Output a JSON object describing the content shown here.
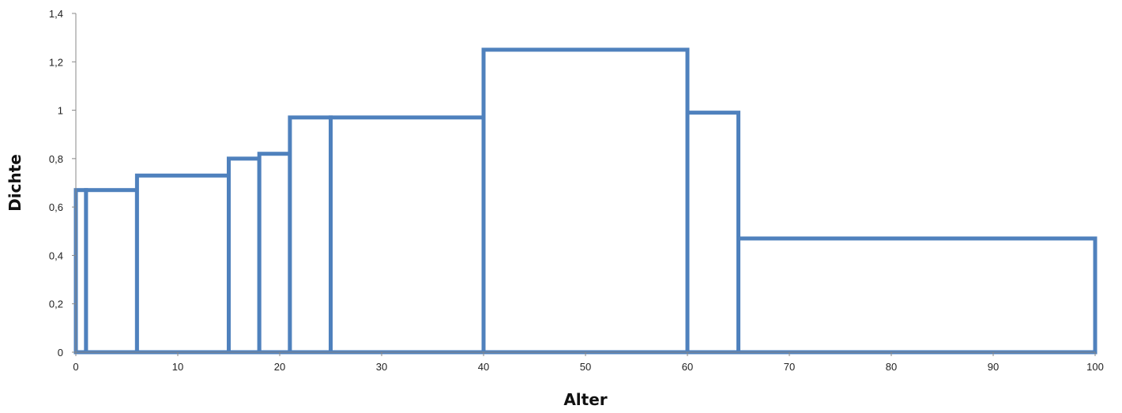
{
  "chart_data": {
    "type": "bar",
    "subtype": "histogram",
    "title": "",
    "xlabel": "Alter",
    "ylabel": "Dichte",
    "xlim": [
      0,
      100
    ],
    "ylim": [
      0,
      1.4
    ],
    "x_ticks": [
      "0",
      "10",
      "20",
      "30",
      "40",
      "50",
      "60",
      "70",
      "80",
      "90",
      "100"
    ],
    "y_ticks": [
      "0",
      "0,2",
      "0,4",
      "0,6",
      "0,8",
      "1",
      "1,2",
      "1,4"
    ],
    "grid": false,
    "bars": [
      {
        "x0": 0,
        "x1": 1,
        "value": 0.67
      },
      {
        "x0": 1,
        "x1": 6,
        "value": 0.67
      },
      {
        "x0": 6,
        "x1": 15,
        "value": 0.73
      },
      {
        "x0": 15,
        "x1": 18,
        "value": 0.8
      },
      {
        "x0": 18,
        "x1": 21,
        "value": 0.82
      },
      {
        "x0": 21,
        "x1": 25,
        "value": 0.97
      },
      {
        "x0": 25,
        "x1": 40,
        "value": 0.97
      },
      {
        "x0": 40,
        "x1": 60,
        "value": 1.25
      },
      {
        "x0": 60,
        "x1": 65,
        "value": 0.99
      },
      {
        "x0": 65,
        "x1": 100,
        "value": 0.47
      }
    ],
    "colors": {
      "bar_outline": "#4f81bd",
      "bar_fill": "#ffffff",
      "axis": "#888888"
    }
  }
}
